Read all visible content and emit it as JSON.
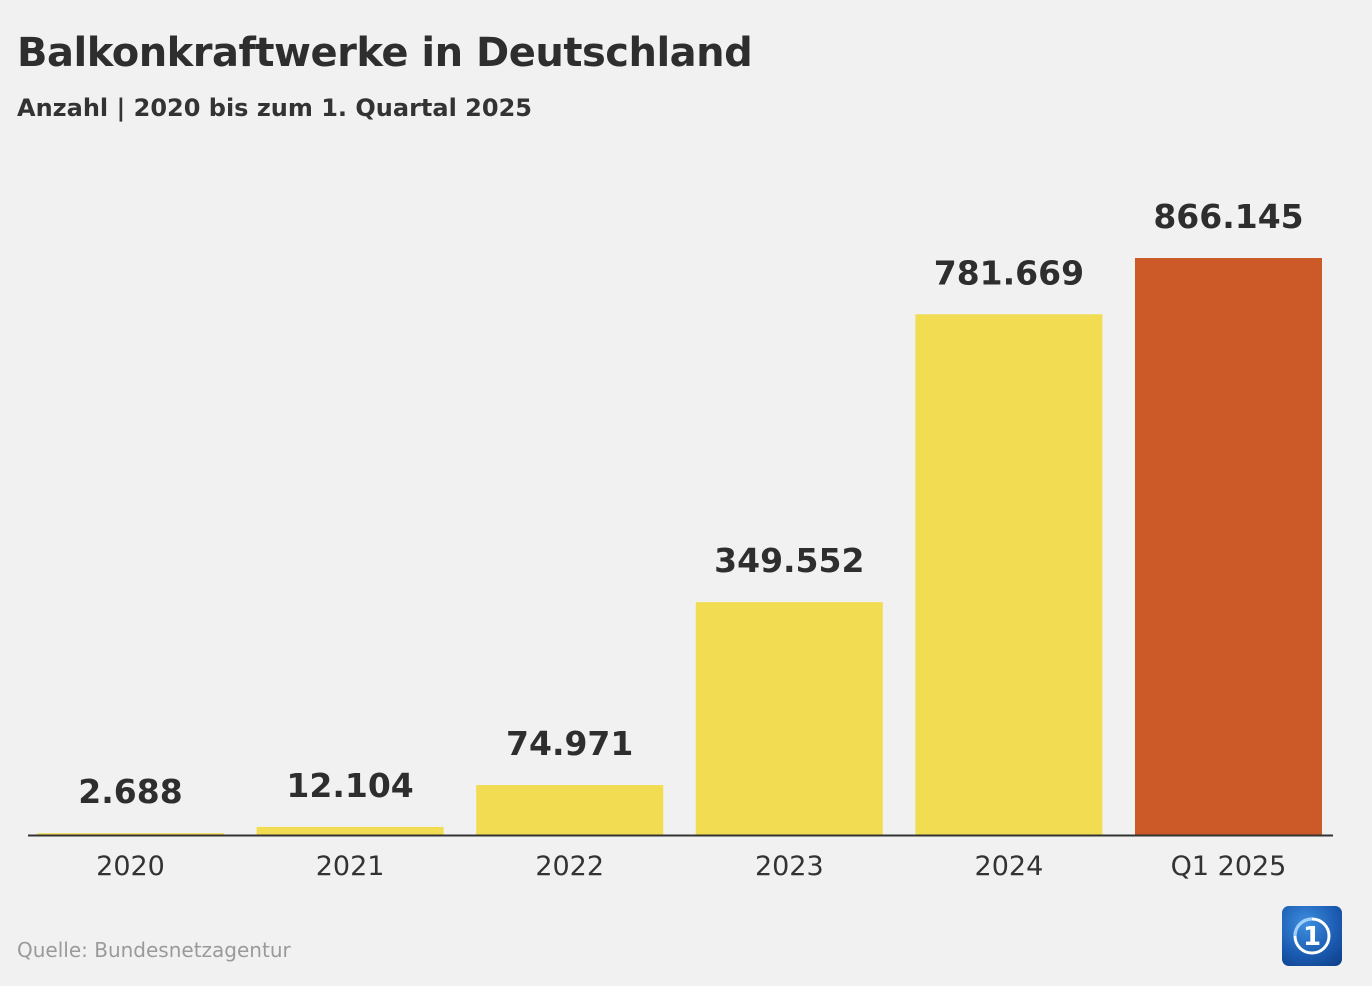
{
  "header": {
    "title": "Balkonkraftwerke in Deutschland",
    "subtitle": "Anzahl | 2020 bis zum 1. Quartal 2025"
  },
  "footer": {
    "source": "Quelle: Bundesnetzagentur",
    "logo_icon": "tagesschau-logo-icon",
    "logo_text": "1"
  },
  "colors": {
    "bar_default": "#f2dd52",
    "bar_highlight": "#cb5a28",
    "axis": "#333333",
    "background": "#f1f1f1"
  },
  "chart_data": {
    "type": "bar",
    "title": "Balkonkraftwerke in Deutschland",
    "subtitle": "Anzahl | 2020 bis zum 1. Quartal 2025",
    "categories": [
      "2020",
      "2021",
      "2022",
      "2023",
      "2024",
      "Q1 2025"
    ],
    "values": [
      2688,
      12104,
      74971,
      349552,
      781669,
      866145
    ],
    "value_labels": [
      "2.688",
      "12.104",
      "74.971",
      "349.552",
      "781.669",
      "866.145"
    ],
    "highlight_index": 5,
    "xlabel": "",
    "ylabel": "",
    "ylim": [
      0,
      866145
    ],
    "grid": false,
    "legend": "none"
  }
}
